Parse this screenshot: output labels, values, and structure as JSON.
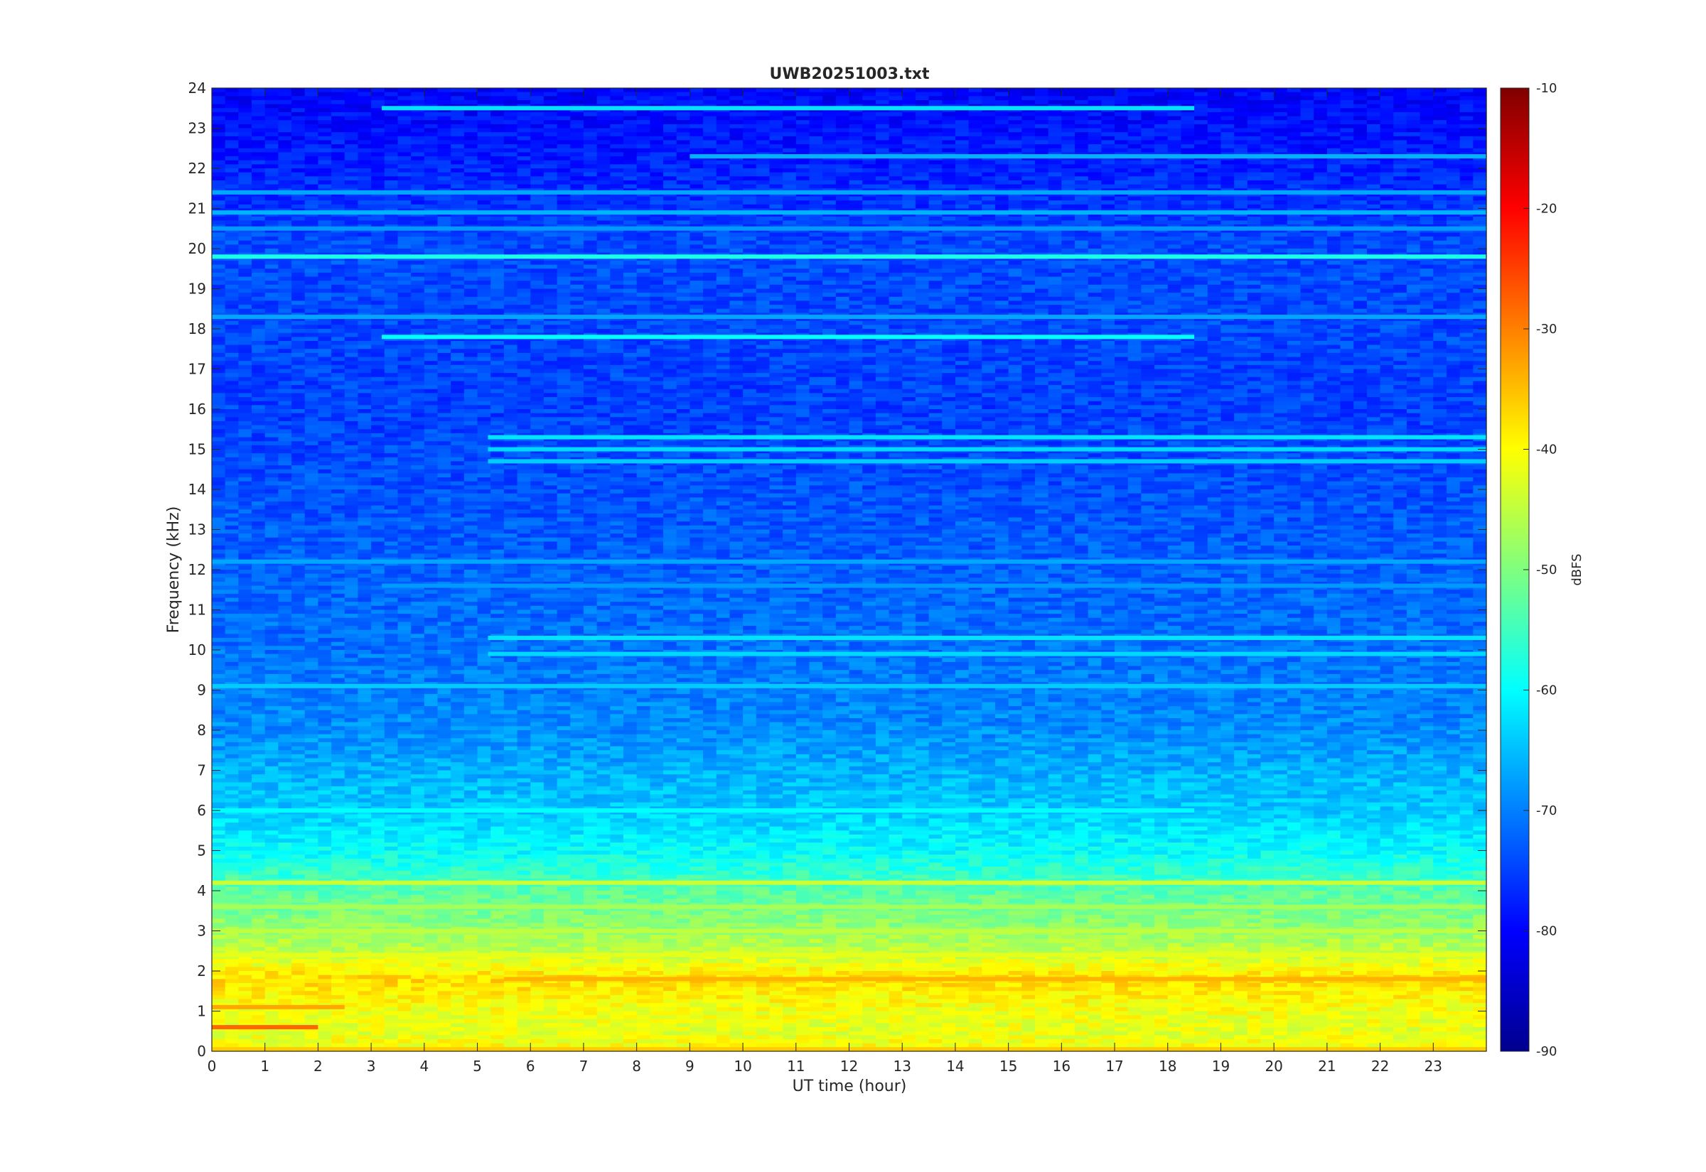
{
  "chart_data": {
    "type": "heatmap",
    "title": "UWB20251003.txt",
    "xlabel": "UT time (hour)",
    "ylabel": "Frequency (kHz)",
    "xlim": [
      0,
      24
    ],
    "ylim": [
      0,
      24
    ],
    "x_ticks": [
      0,
      1,
      2,
      3,
      4,
      5,
      6,
      7,
      8,
      9,
      10,
      11,
      12,
      13,
      14,
      15,
      16,
      17,
      18,
      19,
      20,
      21,
      22,
      23
    ],
    "y_ticks": [
      0,
      1,
      2,
      3,
      4,
      5,
      6,
      7,
      8,
      9,
      10,
      11,
      12,
      13,
      14,
      15,
      16,
      17,
      18,
      19,
      20,
      21,
      22,
      23,
      24
    ],
    "colorbar": {
      "label": "dBFS",
      "range": [
        -90,
        -10
      ],
      "ticks": [
        -10,
        -20,
        -30,
        -40,
        -50,
        -60,
        -70,
        -80,
        -90
      ],
      "colormap": "jet"
    },
    "background_level_dbfs_by_frequency": [
      {
        "freq": 0.0,
        "level": -40
      },
      {
        "freq": 0.5,
        "level": -42
      },
      {
        "freq": 1.0,
        "level": -41
      },
      {
        "freq": 1.8,
        "level": -37
      },
      {
        "freq": 2.5,
        "level": -45
      },
      {
        "freq": 3.0,
        "level": -48
      },
      {
        "freq": 4.0,
        "level": -53
      },
      {
        "freq": 5.0,
        "level": -60
      },
      {
        "freq": 6.0,
        "level": -64
      },
      {
        "freq": 7.0,
        "level": -66
      },
      {
        "freq": 8.0,
        "level": -69
      },
      {
        "freq": 10.0,
        "level": -71
      },
      {
        "freq": 13.0,
        "level": -73
      },
      {
        "freq": 16.0,
        "level": -75
      },
      {
        "freq": 20.0,
        "level": -74
      },
      {
        "freq": 21.0,
        "level": -76
      },
      {
        "freq": 24.0,
        "level": -80
      }
    ],
    "persistent_lines": [
      {
        "freq": 19.8,
        "t_start": 0,
        "t_end": 24,
        "level": -58
      },
      {
        "freq": 17.8,
        "t_start": 3.2,
        "t_end": 18.5,
        "level": -60
      },
      {
        "freq": 23.5,
        "t_start": 3.2,
        "t_end": 18.5,
        "level": -62
      },
      {
        "freq": 22.3,
        "t_start": 9.0,
        "t_end": 24,
        "level": -66
      },
      {
        "freq": 21.4,
        "t_start": 0,
        "t_end": 24,
        "level": -67
      },
      {
        "freq": 20.9,
        "t_start": 0,
        "t_end": 24,
        "level": -66
      },
      {
        "freq": 20.5,
        "t_start": 0,
        "t_end": 24,
        "level": -68
      },
      {
        "freq": 18.3,
        "t_start": 0,
        "t_end": 24,
        "level": -67
      },
      {
        "freq": 15.3,
        "t_start": 5.2,
        "t_end": 24,
        "level": -62
      },
      {
        "freq": 15.0,
        "t_start": 5.2,
        "t_end": 24,
        "level": -63
      },
      {
        "freq": 14.7,
        "t_start": 5.2,
        "t_end": 24,
        "level": -64
      },
      {
        "freq": 12.2,
        "t_start": 0,
        "t_end": 24,
        "level": -67
      },
      {
        "freq": 11.6,
        "t_start": 3.2,
        "t_end": 24,
        "level": -68
      },
      {
        "freq": 10.3,
        "t_start": 5.2,
        "t_end": 24,
        "level": -62
      },
      {
        "freq": 9.9,
        "t_start": 5.2,
        "t_end": 24,
        "level": -63
      },
      {
        "freq": 9.1,
        "t_start": 0,
        "t_end": 24,
        "level": -64
      },
      {
        "freq": 6.0,
        "t_start": 0,
        "t_end": 18.5,
        "level": -60
      },
      {
        "freq": 4.2,
        "t_start": 0,
        "t_end": 24,
        "level": -44
      },
      {
        "freq": 3.6,
        "t_start": 0,
        "t_end": 24,
        "level": -47
      },
      {
        "freq": 3.0,
        "t_start": 0,
        "t_end": 24,
        "level": -45
      },
      {
        "freq": 2.4,
        "t_start": 0,
        "t_end": 24,
        "level": -42
      },
      {
        "freq": 1.8,
        "t_start": 5.5,
        "t_end": 24,
        "level": -34
      },
      {
        "freq": 1.1,
        "t_start": 0,
        "t_end": 2.5,
        "level": -33
      },
      {
        "freq": 0.6,
        "t_start": 0,
        "t_end": 2.0,
        "level": -28
      },
      {
        "freq": 0.05,
        "t_start": 0,
        "t_end": 24,
        "level": -36
      }
    ]
  }
}
